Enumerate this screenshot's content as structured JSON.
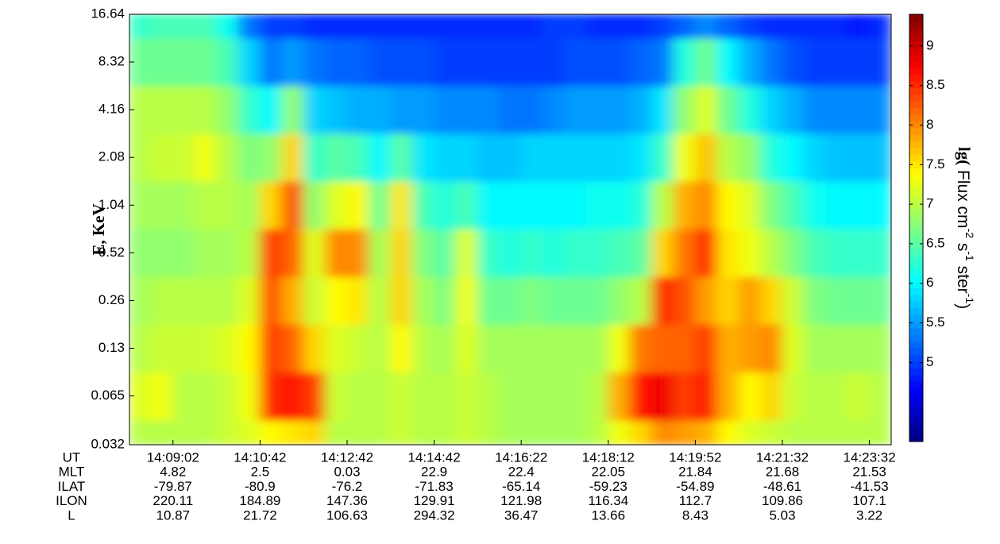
{
  "chart_data": {
    "type": "heatmap",
    "ylabel": "E, KeV",
    "xlabel": "UT",
    "y_log": true,
    "energies": [
      0.032,
      0.065,
      0.13,
      0.26,
      0.52,
      1.04,
      2.08,
      4.16,
      8.32,
      16.64
    ],
    "ylim": [
      0.032,
      16.64
    ],
    "yticks": [
      0.032,
      0.065,
      0.13,
      0.26,
      0.52,
      1.04,
      2.08,
      4.16,
      8.32,
      16.64
    ],
    "xlim": [
      0,
      35
    ],
    "xticks": [
      {
        "value": 2,
        "label": "14:09:02"
      },
      {
        "value": 6,
        "label": "14:10:42"
      },
      {
        "value": 10,
        "label": "14:12:42"
      },
      {
        "value": 14,
        "label": "14:14:42"
      },
      {
        "value": 18,
        "label": "14:16:22"
      },
      {
        "value": 22,
        "label": "14:18:12"
      },
      {
        "value": 26,
        "label": "14:19:52"
      },
      {
        "value": 30,
        "label": "14:21:32"
      },
      {
        "value": 34,
        "label": "14:23:32"
      }
    ],
    "zlim": [
      4.0,
      9.4
    ],
    "colormap": "jet",
    "colorbar_ticks": [
      5,
      5.5,
      6,
      6.5,
      7,
      7.5,
      8,
      8.5,
      9
    ],
    "colorbar_label": [
      {
        "text": "lg(",
        "style": "bold"
      },
      {
        "text": " Flux cm"
      },
      {
        "text": "-2",
        "sup": true
      },
      {
        "text": " s"
      },
      {
        "text": "-1",
        "sup": true
      },
      {
        "text": " ster"
      },
      {
        "text": "-1",
        "sup": true
      },
      {
        "text": ")"
      }
    ],
    "z": [
      [
        7.0,
        7.2,
        7.0,
        6.9,
        6.8,
        6.9,
        7.0,
        7.0,
        6.6,
        6.3
      ],
      [
        7.0,
        7.3,
        7.1,
        7.0,
        6.8,
        6.9,
        7.1,
        7.0,
        6.6,
        6.4
      ],
      [
        7.0,
        7.0,
        7.1,
        7.0,
        6.8,
        6.9,
        7.1,
        7.0,
        6.6,
        6.4
      ],
      [
        7.0,
        7.0,
        7.1,
        7.0,
        6.9,
        7.0,
        7.3,
        7.0,
        6.6,
        6.4
      ],
      [
        7.1,
        7.1,
        7.2,
        7.0,
        6.9,
        7.0,
        7.0,
        6.8,
        6.4,
        6.1
      ],
      [
        7.2,
        7.3,
        7.4,
        7.2,
        7.0,
        6.9,
        6.7,
        6.3,
        5.8,
        5.3
      ],
      [
        7.4,
        8.5,
        8.4,
        8.3,
        8.4,
        7.6,
        6.8,
        6.0,
        5.3,
        5.0
      ],
      [
        7.5,
        8.6,
        8.2,
        7.8,
        8.2,
        8.3,
        7.6,
        6.8,
        5.5,
        5.0
      ],
      [
        7.6,
        8.4,
        7.6,
        7.1,
        7.2,
        6.8,
        6.3,
        5.8,
        5.3,
        4.9
      ],
      [
        7.0,
        7.1,
        7.2,
        7.4,
        8.0,
        7.2,
        6.5,
        5.7,
        5.2,
        4.9
      ],
      [
        7.0,
        7.0,
        7.1,
        7.5,
        8.0,
        7.4,
        6.4,
        5.6,
        5.2,
        4.9
      ],
      [
        7.0,
        7.0,
        7.0,
        7.0,
        6.9,
        6.6,
        6.0,
        5.6,
        5.1,
        4.9
      ],
      [
        7.1,
        7.1,
        7.4,
        7.6,
        7.6,
        7.5,
        6.5,
        5.5,
        5.1,
        4.9
      ],
      [
        7.0,
        7.0,
        7.0,
        6.9,
        6.7,
        6.4,
        5.9,
        5.5,
        5.1,
        4.9
      ],
      [
        7.0,
        7.0,
        6.9,
        6.7,
        6.5,
        6.2,
        5.8,
        5.4,
        5.0,
        4.9
      ],
      [
        7.1,
        7.1,
        7.2,
        7.3,
        7.2,
        6.4,
        5.8,
        5.4,
        5.0,
        4.9
      ],
      [
        7.0,
        7.0,
        6.9,
        6.6,
        6.3,
        6.0,
        5.7,
        5.4,
        5.0,
        4.9
      ],
      [
        6.9,
        6.9,
        6.9,
        6.6,
        6.2,
        6.0,
        5.7,
        5.3,
        5.0,
        4.9
      ],
      [
        6.9,
        6.9,
        6.9,
        6.7,
        6.3,
        6.0,
        5.8,
        5.3,
        5.0,
        4.9
      ],
      [
        6.9,
        6.9,
        6.9,
        6.6,
        6.2,
        6.0,
        5.8,
        5.4,
        5.0,
        5.0
      ],
      [
        6.9,
        6.9,
        6.9,
        6.6,
        6.3,
        6.0,
        5.8,
        5.5,
        5.1,
        5.0
      ],
      [
        7.0,
        7.0,
        6.9,
        6.6,
        6.3,
        6.1,
        5.8,
        5.5,
        5.1,
        4.9
      ],
      [
        7.3,
        7.8,
        7.3,
        6.8,
        6.4,
        6.1,
        5.8,
        5.5,
        5.1,
        4.9
      ],
      [
        7.6,
        8.6,
        8.1,
        7.0,
        6.5,
        6.2,
        5.9,
        5.6,
        5.2,
        4.9
      ],
      [
        8.0,
        8.8,
        8.2,
        8.5,
        7.6,
        7.0,
        6.3,
        5.9,
        5.3,
        5.0
      ],
      [
        7.9,
        8.4,
        8.2,
        8.3,
        8.1,
        7.8,
        7.3,
        6.8,
        6.2,
        5.2
      ],
      [
        7.8,
        8.6,
        8.4,
        7.9,
        8.5,
        8.0,
        7.7,
        7.2,
        6.6,
        5.4
      ],
      [
        7.4,
        7.8,
        7.8,
        7.6,
        7.5,
        7.4,
        7.0,
        6.6,
        6.0,
        5.2
      ],
      [
        7.2,
        7.4,
        7.9,
        7.9,
        7.3,
        7.2,
        6.8,
        6.2,
        5.6,
        5.0
      ],
      [
        7.1,
        7.6,
        8.0,
        7.6,
        7.0,
        6.7,
        6.2,
        5.8,
        5.3,
        4.9
      ],
      [
        7.0,
        7.1,
        7.2,
        7.1,
        6.7,
        6.4,
        6.0,
        5.6,
        5.1,
        4.9
      ],
      [
        7.0,
        7.0,
        6.9,
        6.7,
        6.4,
        6.1,
        5.8,
        5.4,
        5.0,
        4.9
      ],
      [
        7.0,
        7.0,
        6.9,
        6.6,
        6.3,
        6.0,
        5.7,
        5.4,
        5.0,
        4.9
      ],
      [
        7.0,
        7.1,
        6.9,
        6.6,
        6.3,
        6.0,
        5.7,
        5.4,
        5.0,
        4.8
      ],
      [
        7.0,
        7.0,
        6.9,
        6.6,
        6.3,
        6.0,
        5.7,
        5.4,
        5.0,
        4.9
      ]
    ],
    "x_table": [
      {
        "label": "MLT",
        "values": [
          4.82,
          2.5,
          0.03,
          22.9,
          22.4,
          22.05,
          21.84,
          21.68,
          21.53
        ]
      },
      {
        "label": "ILAT",
        "values": [
          -79.87,
          -80.9,
          -76.2,
          -71.83,
          -65.14,
          -59.23,
          -54.89,
          -48.61,
          -41.53
        ]
      },
      {
        "label": "ILON",
        "values": [
          220.11,
          184.89,
          147.36,
          129.91,
          121.98,
          116.34,
          112.7,
          109.86,
          107.1
        ]
      },
      {
        "label": "L",
        "values": [
          10.87,
          21.72,
          106.63,
          294.32,
          36.47,
          13.66,
          8.43,
          5.03,
          3.22
        ]
      }
    ]
  }
}
